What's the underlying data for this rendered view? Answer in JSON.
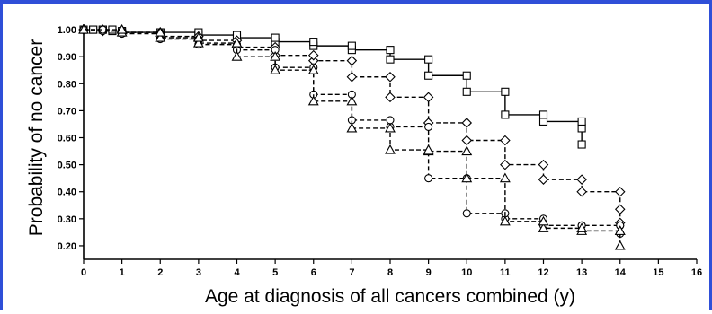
{
  "chart_data": {
    "type": "line",
    "title": "",
    "xlabel": "Age at diagnosis of all cancers combined (y)",
    "ylabel": "Probability of no cancer",
    "xlim": [
      0,
      16
    ],
    "ylim": [
      0.15,
      1.05
    ],
    "x_ticks": [
      "0",
      "1",
      "2",
      "3",
      "4",
      "5",
      "6",
      "7",
      "8",
      "9",
      "10",
      "11",
      "12",
      "13",
      "14",
      "15",
      "16"
    ],
    "y_ticks": [
      "0.20",
      "0.30",
      "0.40",
      "0.50",
      "0.60",
      "0.70",
      "0.80",
      "0.90",
      "1.00"
    ],
    "grid": false,
    "legend": "none",
    "series": [
      {
        "marker": "square",
        "line": "solid",
        "x": [
          0,
          0.25,
          0.5,
          0.75,
          1,
          2,
          3,
          4,
          5,
          6,
          7,
          8,
          9,
          10,
          11,
          12,
          13,
          13
        ],
        "y": [
          1.0,
          1.0,
          1.0,
          0.995,
          0.99,
          0.99,
          0.98,
          0.97,
          0.955,
          0.94,
          0.925,
          0.89,
          0.83,
          0.77,
          0.685,
          0.66,
          0.635,
          0.575
        ]
      },
      {
        "marker": "diamond",
        "line": "dashed",
        "x": [
          0,
          0.5,
          1,
          2,
          3,
          4,
          5,
          6,
          7,
          8,
          9,
          10,
          11,
          12,
          13,
          14,
          14
        ],
        "y": [
          1.0,
          0.995,
          0.99,
          0.975,
          0.96,
          0.935,
          0.905,
          0.885,
          0.825,
          0.75,
          0.655,
          0.59,
          0.5,
          0.445,
          0.4,
          0.335,
          0.285
        ]
      },
      {
        "marker": "circle",
        "line": "dashed",
        "x": [
          0,
          0.5,
          1,
          2,
          3,
          4,
          5,
          6,
          7,
          8,
          9,
          10,
          11,
          12,
          13,
          14,
          14
        ],
        "y": [
          1.0,
          0.995,
          0.985,
          0.965,
          0.945,
          0.925,
          0.86,
          0.76,
          0.665,
          0.64,
          0.45,
          0.32,
          0.3,
          0.275,
          0.275,
          0.275,
          0.245
        ]
      },
      {
        "marker": "triangle",
        "line": "dashed",
        "x": [
          0,
          1,
          2,
          3,
          4,
          5,
          6,
          7,
          8,
          9,
          10,
          11,
          12,
          13,
          14,
          14
        ],
        "y": [
          1.0,
          0.99,
          0.97,
          0.95,
          0.9,
          0.85,
          0.735,
          0.635,
          0.555,
          0.55,
          0.45,
          0.29,
          0.265,
          0.255,
          0.255,
          0.2
        ]
      }
    ]
  }
}
